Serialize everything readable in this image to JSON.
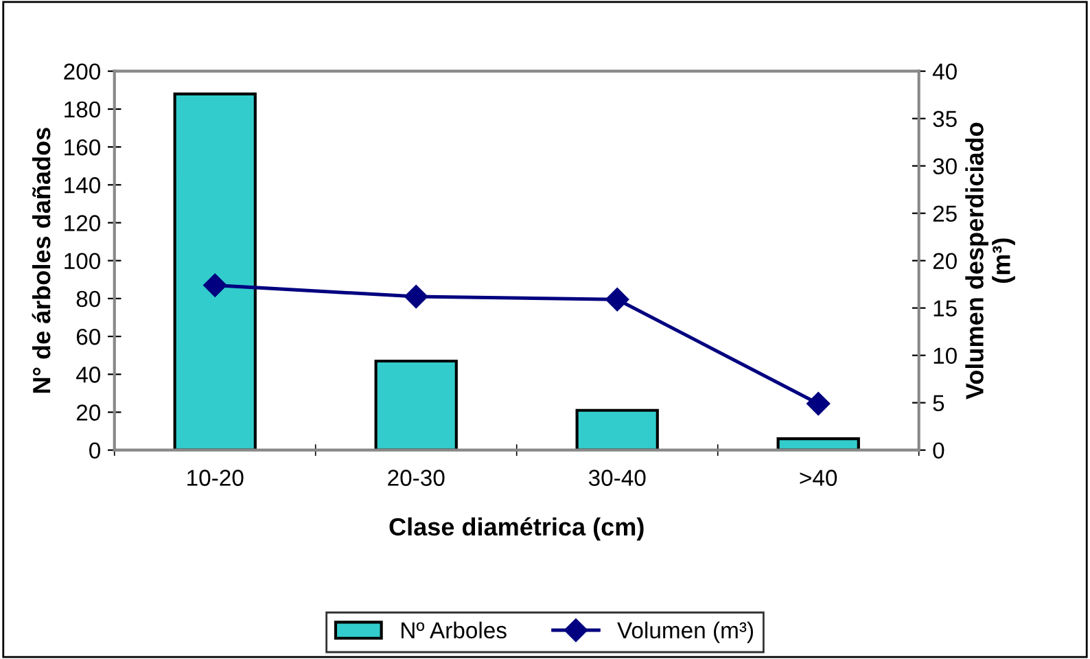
{
  "chart_data": {
    "type": "bar",
    "xlabel": "Clase diamétrica (cm)",
    "ylabel": "N° de árboles dañados",
    "y2label": "Volumen desperdiciado\n(m³)",
    "categories": [
      "10-20",
      "20-30",
      "30-40",
      ">40"
    ],
    "series": [
      {
        "name": "Nº Arboles",
        "color": "#33cccc",
        "values": [
          188,
          47,
          21,
          6
        ]
      },
      {
        "name": "Volumen (m³)",
        "type": "line",
        "axis": "y2",
        "color": "#000080",
        "marker": "diamond",
        "values": [
          17.4,
          16.2,
          15.9,
          4.9
        ]
      }
    ],
    "ylim": [
      0,
      200
    ],
    "yticks": [
      0,
      20,
      40,
      60,
      80,
      100,
      120,
      140,
      160,
      180,
      200
    ],
    "y2lim": [
      0,
      40
    ],
    "y2ticks": [
      0,
      5,
      10,
      15,
      20,
      25,
      30,
      35,
      40
    ],
    "grid": false,
    "legend": "bottom"
  }
}
